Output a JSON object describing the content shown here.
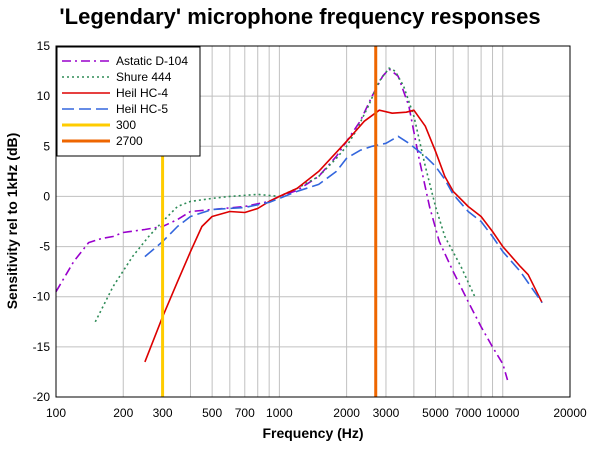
{
  "chart_data": {
    "type": "line",
    "title": "'Legendary' microphone frequency responses",
    "xlabel": "Frequency (Hz)",
    "ylabel": "Sensitivity rel to 1kHz (dB)",
    "x_scale": "log",
    "xlim": [
      100,
      20000
    ],
    "ylim": [
      -20,
      15
    ],
    "x_tick_values": [
      100,
      200,
      300,
      500,
      700,
      1000,
      2000,
      3000,
      5000,
      7000,
      10000,
      20000
    ],
    "x_tick_labels": [
      "100",
      "200",
      "300",
      "500",
      "700",
      "1000",
      "2000",
      "3000",
      "5000",
      "7000",
      "10000",
      "20000"
    ],
    "y_tick_values": [
      15,
      10,
      5,
      0,
      -5,
      -10,
      -15,
      -20
    ],
    "y_tick_labels": [
      "15",
      "10",
      "5",
      "0",
      "-5",
      "-10",
      "-15",
      "-20"
    ],
    "grid": true,
    "legend_position": "top-left",
    "series": [
      {
        "name": "Astatic D-104",
        "color": "#9900cc",
        "dash": "dashdot",
        "points": [
          [
            100,
            -9.5
          ],
          [
            120,
            -6.5
          ],
          [
            140,
            -4.6
          ],
          [
            160,
            -4.2
          ],
          [
            180,
            -4.0
          ],
          [
            200,
            -3.6
          ],
          [
            250,
            -3.3
          ],
          [
            300,
            -3.0
          ],
          [
            350,
            -2.3
          ],
          [
            400,
            -1.5
          ],
          [
            500,
            -1.3
          ],
          [
            700,
            -1.0
          ],
          [
            900,
            -0.5
          ],
          [
            1000,
            0.0
          ],
          [
            1200,
            0.6
          ],
          [
            1500,
            2.0
          ],
          [
            1800,
            4.0
          ],
          [
            2000,
            5.5
          ],
          [
            2300,
            7.5
          ],
          [
            2600,
            10.0
          ],
          [
            2900,
            12.0
          ],
          [
            3100,
            12.7
          ],
          [
            3400,
            12.0
          ],
          [
            3800,
            9.0
          ],
          [
            4200,
            4.0
          ],
          [
            4700,
            -1.0
          ],
          [
            5200,
            -4.5
          ],
          [
            6000,
            -7.5
          ],
          [
            7000,
            -10.5
          ],
          [
            8000,
            -13.0
          ],
          [
            9000,
            -15.0
          ],
          [
            10000,
            -16.7
          ],
          [
            10500,
            -18.3
          ]
        ]
      },
      {
        "name": "Shure 444",
        "color": "#2e8b57",
        "dash": "dot",
        "points": [
          [
            150,
            -12.5
          ],
          [
            180,
            -9.0
          ],
          [
            220,
            -6.0
          ],
          [
            260,
            -4.0
          ],
          [
            300,
            -2.5
          ],
          [
            350,
            -1.0
          ],
          [
            400,
            -0.5
          ],
          [
            500,
            -0.2
          ],
          [
            600,
            0.0
          ],
          [
            700,
            0.1
          ],
          [
            800,
            0.2
          ],
          [
            1000,
            0.0
          ],
          [
            1200,
            0.8
          ],
          [
            1500,
            2.0
          ],
          [
            1800,
            3.8
          ],
          [
            2000,
            5.0
          ],
          [
            2200,
            6.5
          ],
          [
            2500,
            9.0
          ],
          [
            2800,
            11.5
          ],
          [
            3100,
            12.8
          ],
          [
            3300,
            12.5
          ],
          [
            3600,
            11.0
          ],
          [
            4000,
            8.0
          ],
          [
            4500,
            3.0
          ],
          [
            5000,
            -1.0
          ],
          [
            5500,
            -4.0
          ],
          [
            6500,
            -7.0
          ],
          [
            7500,
            -10.0
          ]
        ]
      },
      {
        "name": "Heil HC-4",
        "color": "#dd0000",
        "dash": "solid",
        "points": [
          [
            250,
            -16.5
          ],
          [
            300,
            -12.0
          ],
          [
            350,
            -8.5
          ],
          [
            400,
            -5.5
          ],
          [
            450,
            -3.0
          ],
          [
            500,
            -2.0
          ],
          [
            600,
            -1.5
          ],
          [
            700,
            -1.6
          ],
          [
            800,
            -1.2
          ],
          [
            900,
            -0.5
          ],
          [
            1000,
            0.0
          ],
          [
            1200,
            0.8
          ],
          [
            1500,
            2.5
          ],
          [
            2000,
            5.5
          ],
          [
            2400,
            7.5
          ],
          [
            2800,
            8.6
          ],
          [
            3200,
            8.3
          ],
          [
            3700,
            8.4
          ],
          [
            4000,
            8.6
          ],
          [
            4500,
            7.0
          ],
          [
            5000,
            4.5
          ],
          [
            5500,
            2.0
          ],
          [
            6000,
            0.5
          ],
          [
            7000,
            -1.0
          ],
          [
            8000,
            -2.0
          ],
          [
            9000,
            -3.5
          ],
          [
            10000,
            -5.0
          ],
          [
            12000,
            -7.0
          ],
          [
            13000,
            -7.8
          ],
          [
            15000,
            -10.6
          ]
        ]
      },
      {
        "name": "Heil HC-5",
        "color": "#3366dd",
        "dash": "longdash",
        "points": [
          [
            250,
            -6.0
          ],
          [
            300,
            -4.5
          ],
          [
            350,
            -3.0
          ],
          [
            400,
            -2.0
          ],
          [
            500,
            -1.3
          ],
          [
            700,
            -1.1
          ],
          [
            900,
            -0.6
          ],
          [
            1000,
            -0.2
          ],
          [
            1200,
            0.5
          ],
          [
            1500,
            1.2
          ],
          [
            1800,
            2.5
          ],
          [
            2000,
            3.8
          ],
          [
            2300,
            4.6
          ],
          [
            2600,
            5.0
          ],
          [
            3000,
            5.3
          ],
          [
            3400,
            6.0
          ],
          [
            3800,
            5.3
          ],
          [
            4500,
            4.0
          ],
          [
            5000,
            3.0
          ],
          [
            5500,
            1.7
          ],
          [
            6000,
            0.2
          ],
          [
            7000,
            -1.5
          ],
          [
            8000,
            -2.5
          ],
          [
            9000,
            -4.0
          ],
          [
            10000,
            -5.5
          ],
          [
            12000,
            -7.5
          ],
          [
            15000,
            -10.6
          ]
        ]
      },
      {
        "name": "300",
        "color": "#ffcc00",
        "dash": "solid",
        "vertical": 300
      },
      {
        "name": "2700",
        "color": "#ee6600",
        "dash": "solid",
        "vertical": 2700
      }
    ]
  }
}
